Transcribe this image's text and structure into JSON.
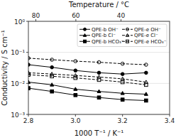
{
  "chart_data": {
    "type": "line",
    "x_label": "1000 T⁻¹ / K⁻¹",
    "x2_label": "Temperature / °C",
    "y_label": "Conductivity / S cm⁻¹",
    "log": "y",
    "legend": "upper right",
    "background_color": "#ffffff",
    "xlim": [
      2.8,
      3.4
    ],
    "xticks": [
      2.8,
      {
        "value": 3.0,
        "label": "3.0"
      },
      3.2,
      3.4
    ],
    "x2lim": [
      2.8,
      3.4
    ],
    "x2ticks": [
      {
        "value": 2.831658,
        "label": "80"
      },
      {
        "value": 3.001651,
        "label": "60"
      },
      {
        "value": 3.193358,
        "label": "40"
      }
    ],
    "ylim": [
      0.001,
      1
    ],
    "yticks": [
      {
        "value": 0.001,
        "label": "10⁻³"
      },
      {
        "value": 0.01,
        "label": "10⁻²"
      },
      {
        "value": 0.1,
        "label": "10⁻¹"
      },
      {
        "value": 1,
        "label": "10⁰"
      }
    ],
    "x": [
      2.8,
      2.9,
      3.0,
      3.1,
      3.2,
      3.3
    ],
    "series": [
      {
        "name": "QPE-b OH⁻",
        "color": "black",
        "marker": "circle",
        "fill": "full",
        "line_style": "solid",
        "values": [
          0.04,
          0.033,
          0.026,
          0.022,
          0.02,
          0.022
        ]
      },
      {
        "name": "QPE-b Cl⁻",
        "color": "black",
        "marker": "triangle",
        "fill": "full",
        "line_style": "solid",
        "values": [
          0.011,
          0.009,
          0.0065,
          0.0055,
          0.0048,
          0.0045
        ]
      },
      {
        "name": "QPE-b HCO₃⁻",
        "color": "black",
        "marker": "square",
        "fill": "full",
        "line_style": "solid",
        "values": [
          0.007,
          0.0055,
          0.0042,
          0.0035,
          0.003,
          0.0028
        ]
      },
      {
        "name": "QPE-e OH⁻",
        "color": "black",
        "marker": "circle",
        "fill": "none",
        "line_style": "dashed",
        "values": [
          0.065,
          0.058,
          0.052,
          0.048,
          0.043,
          0.04
        ]
      },
      {
        "name": "QPE-e Cl⁻",
        "color": "black",
        "marker": "triangle",
        "fill": "none",
        "line_style": "dashed",
        "values": [
          0.022,
          0.02,
          0.018,
          0.016,
          0.014,
          0.011
        ]
      },
      {
        "name": "QPE-e HCO₃⁻",
        "color": "black",
        "marker": "square",
        "fill": "none",
        "line_style": "dashed",
        "values": [
          0.019,
          0.017,
          0.015,
          0.013,
          0.011,
          0.009
        ]
      }
    ]
  }
}
